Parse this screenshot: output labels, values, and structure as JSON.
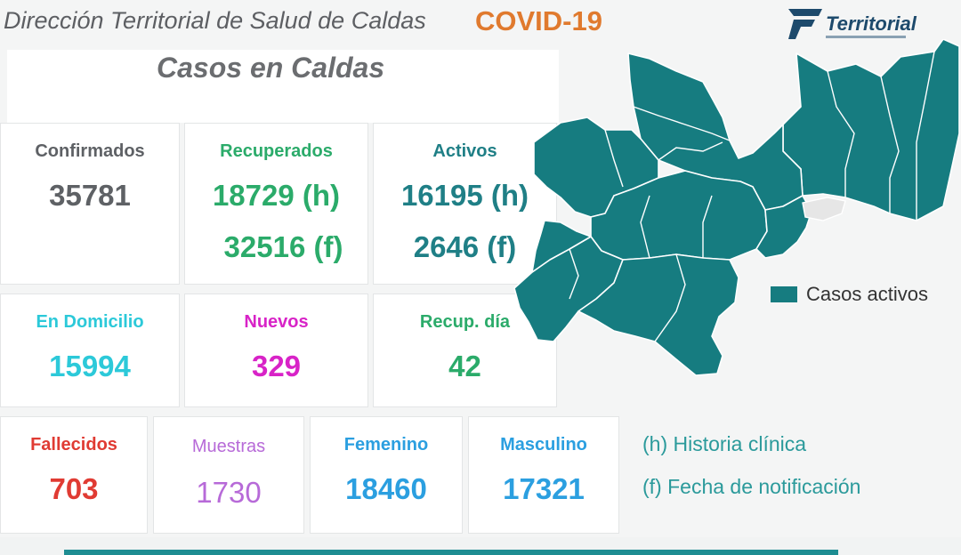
{
  "header": {
    "org_title": "Dirección Territorial de Salud de Caldas",
    "badge": "COVID-19",
    "logo_text": "Territorial"
  },
  "panel": {
    "title": "Casos en Caldas"
  },
  "stats": {
    "confirmados": {
      "label": "Confirmados",
      "value": "35781"
    },
    "recuperados": {
      "label": "Recuperados",
      "value_h": "18729 (h)",
      "value_f": "32516 (f)"
    },
    "activos": {
      "label": "Activos",
      "value_h": "16195 (h)",
      "value_f": "2646 (f)"
    },
    "en_domicilio": {
      "label": "En Domicilio",
      "value": "15994"
    },
    "nuevos": {
      "label": "Nuevos",
      "value": "329"
    },
    "recup_dia": {
      "label": "Recup. día",
      "value": "42"
    },
    "fallecidos": {
      "label": "Fallecidos",
      "value": "703"
    },
    "muestras": {
      "label": "Muestras",
      "value": "1730"
    },
    "femenino": {
      "label": "Femenino",
      "value": "18460"
    },
    "masculino": {
      "label": "Masculino",
      "value": "17321"
    }
  },
  "map": {
    "legend": "Casos activos",
    "colors": {
      "fill": "#167c80",
      "border": "#ffffff",
      "highlight": "#e6e6e6"
    }
  },
  "notes": {
    "h": "(h) Historia clínica",
    "f": "(f) Fecha de notificación"
  },
  "colors": {
    "header_badge": "#e07a2e",
    "confirmados": "#5e6165",
    "recuperados": "#2bab6a",
    "activos": "#1f7f86",
    "en_domicilio": "#2cc9d9",
    "nuevos": "#d823c7",
    "fallecidos": "#e03b33",
    "muestras": "#b76ad8",
    "genero": "#2b9fe0"
  }
}
